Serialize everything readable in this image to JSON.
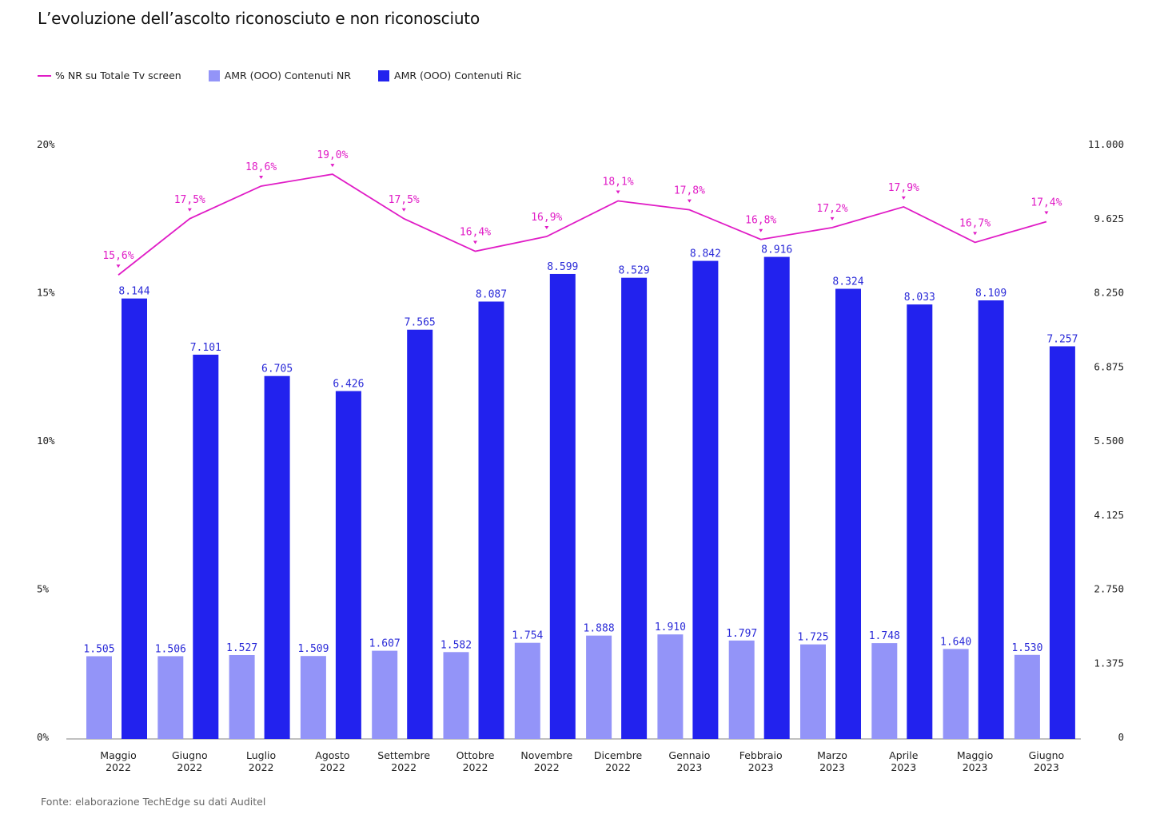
{
  "chart_data": {
    "type": "bar",
    "title": "L’evoluzione dell’ascolto riconosciuto e non riconosciuto",
    "categories": [
      [
        "Maggio",
        "2022"
      ],
      [
        "Giugno",
        "2022"
      ],
      [
        "Luglio",
        "2022"
      ],
      [
        "Agosto",
        "2022"
      ],
      [
        "Settembre",
        "2022"
      ],
      [
        "Ottobre",
        "2022"
      ],
      [
        "Novembre",
        "2022"
      ],
      [
        "Dicembre",
        "2022"
      ],
      [
        "Gennaio",
        "2023"
      ],
      [
        "Febbraio",
        "2023"
      ],
      [
        "Marzo",
        "2023"
      ],
      [
        "Aprile",
        "2023"
      ],
      [
        "Maggio",
        "2023"
      ],
      [
        "Giugno",
        "2023"
      ]
    ],
    "series": [
      {
        "name": "% NR su Totale Tv screen",
        "kind": "line",
        "axis": "left",
        "color": "#e01cc6",
        "values": [
          15.6,
          17.5,
          18.6,
          19.0,
          17.5,
          16.4,
          16.9,
          18.1,
          17.8,
          16.8,
          17.2,
          17.9,
          16.7,
          17.4
        ],
        "labels": [
          "15,6%",
          "17,5%",
          "18,6%",
          "19,0%",
          "17,5%",
          "16,4%",
          "16,9%",
          "18,1%",
          "17,8%",
          "16,8%",
          "17,2%",
          "17,9%",
          "16,7%",
          "17,4%"
        ]
      },
      {
        "name": "AMR (OOO) Contenuti NR",
        "kind": "bar",
        "axis": "right",
        "color": "#9394f8",
        "values": [
          1505,
          1506,
          1527,
          1509,
          1607,
          1582,
          1754,
          1888,
          1910,
          1797,
          1725,
          1748,
          1640,
          1530
        ],
        "labels": [
          "1.505",
          "1.506",
          "1.527",
          "1.509",
          "1.607",
          "1.582",
          "1.754",
          "1.888",
          "1.910",
          "1.797",
          "1.725",
          "1.748",
          "1.640",
          "1.530"
        ]
      },
      {
        "name": "AMR (OOO) Contenuti Ric",
        "kind": "bar",
        "axis": "right",
        "color": "#2222ee",
        "values": [
          8144,
          7101,
          6705,
          6426,
          7565,
          8087,
          8599,
          8529,
          8842,
          8916,
          8324,
          8033,
          8109,
          7257
        ],
        "labels": [
          "8.144",
          "7.101",
          "6.705",
          "6.426",
          "7.565",
          "8.087",
          "8.599",
          "8.529",
          "8.842",
          "8.916",
          "8.324",
          "8.033",
          "8.109",
          "7.257"
        ]
      }
    ],
    "y_left": {
      "range": [
        0,
        20
      ],
      "ticks": [
        "0%",
        "5%",
        "10%",
        "15%",
        "20%"
      ]
    },
    "y_right": {
      "range": [
        0,
        11000
      ],
      "ticks": [
        "0",
        "1.375",
        "2.750",
        "4.125",
        "5.500",
        "6.875",
        "8.250",
        "9.625",
        "11.000"
      ]
    },
    "grid": false,
    "legend_position": "top-left"
  },
  "source": "Fonte: elaborazione TechEdge su dati Auditel"
}
